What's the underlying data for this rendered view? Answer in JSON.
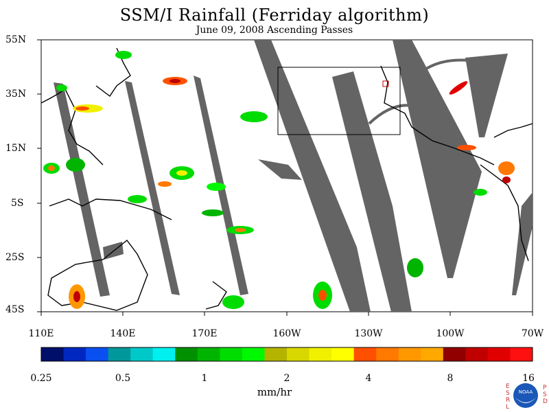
{
  "title": "SSM/I Rainfall (Ferriday algorithm)",
  "subtitle": "June 09, 2008  Ascending Passes",
  "lat_labels": [
    "55N",
    "35N",
    "15N",
    "5S",
    "25S",
    "45S"
  ],
  "lon_labels": [
    "110E",
    "140E",
    "170E",
    "160W",
    "130W",
    "100W",
    "70W"
  ],
  "colorbar": {
    "colors": [
      "#00106a",
      "#0028c0",
      "#0a50f0",
      "#00989a",
      "#00c8c8",
      "#00f0f0",
      "#009000",
      "#00b400",
      "#00dc00",
      "#00f800",
      "#b4b400",
      "#d8d800",
      "#f0f000",
      "#ffff00",
      "#ff5000",
      "#ff7800",
      "#ff9800",
      "#ffa800",
      "#900000",
      "#c00000",
      "#e00000",
      "#ff1010"
    ],
    "tick_labels": [
      "0.25",
      "0.5",
      "1",
      "2",
      "4",
      "8",
      "16"
    ],
    "units": "mm/hr"
  },
  "logo": {
    "left_letters": [
      "E",
      "S",
      "R",
      "L"
    ],
    "right_letters": [
      "P",
      "S",
      "D"
    ],
    "center_text": "NOAA"
  },
  "colors": {
    "swath_gap": "#646464",
    "coast": "#000000"
  }
}
